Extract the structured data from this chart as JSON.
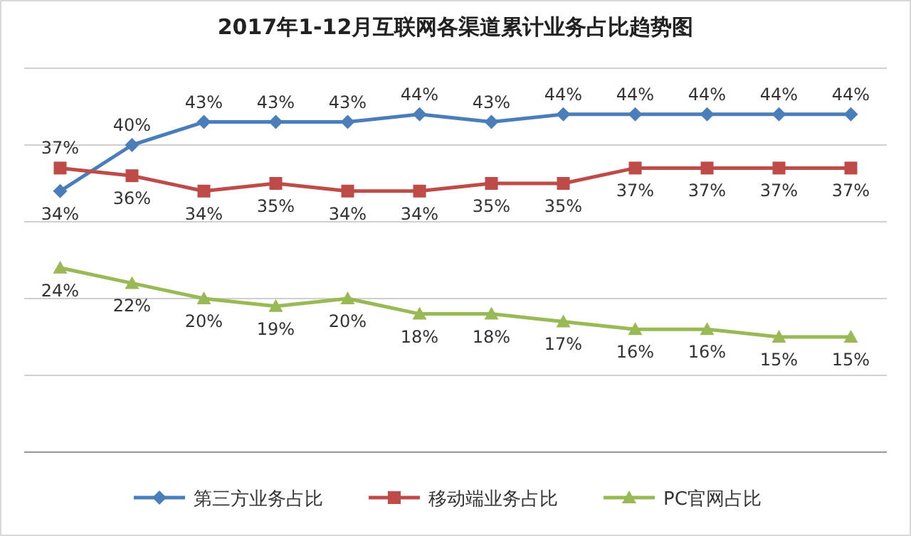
{
  "chart_data": {
    "type": "line",
    "title": "2017年1-12月互联网各渠道累计业务占比趋势图",
    "categories": [
      null,
      null,
      null,
      null,
      null,
      null,
      null,
      null,
      null,
      null,
      null,
      null
    ],
    "series": [
      {
        "name": "第三方业务占比",
        "color": "#4a7ebb",
        "marker": "diamond",
        "values": [
          34,
          40,
          43,
          43,
          43,
          44,
          43,
          44,
          44,
          44,
          44,
          44
        ],
        "value_labels": [
          "34%",
          "40%",
          "43%",
          "43%",
          "43%",
          "44%",
          "43%",
          "44%",
          "44%",
          "44%",
          "44%",
          "44%"
        ]
      },
      {
        "name": "移动端业务占比",
        "color": "#be4b48",
        "marker": "square",
        "values": [
          37,
          36,
          34,
          35,
          34,
          34,
          35,
          35,
          37,
          37,
          37,
          37
        ],
        "value_labels": [
          "37%",
          "36%",
          "34%",
          "35%",
          "34%",
          "34%",
          "35%",
          "35%",
          "37%",
          "37%",
          "37%",
          "37%"
        ]
      },
      {
        "name": "PC官网占比",
        "color": "#98b954",
        "marker": "triangle",
        "values": [
          24,
          22,
          20,
          19,
          20,
          18,
          18,
          17,
          16,
          16,
          15,
          15
        ],
        "value_labels": [
          "24%",
          "22%",
          "20%",
          "19%",
          "20%",
          "18%",
          "18%",
          "17%",
          "16%",
          "16%",
          "15%",
          "15%"
        ]
      }
    ],
    "ylim": [
      0,
      50
    ],
    "yticks": [
      {
        "value": 0,
        "label": null
      },
      {
        "value": 10,
        "label": null
      },
      {
        "value": 20,
        "label": null
      },
      {
        "value": 30,
        "label": null
      },
      {
        "value": 40,
        "label": null
      },
      {
        "value": 50,
        "label": null
      }
    ],
    "grid": "y",
    "legend": "bottom",
    "line_style": "solid"
  }
}
